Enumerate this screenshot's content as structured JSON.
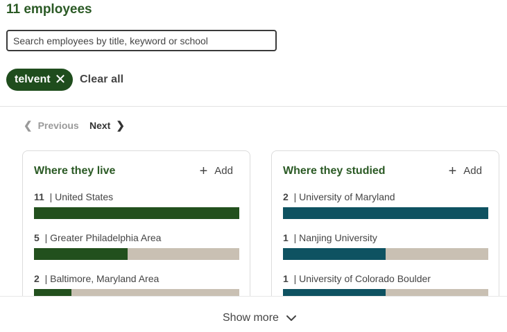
{
  "header": {
    "title": "11 employees"
  },
  "search": {
    "placeholder": "Search employees by title, keyword or school"
  },
  "filters": {
    "active_pill": "telvent",
    "clear_label": "Clear all"
  },
  "pagination": {
    "previous_label": "Previous",
    "next_label": "Next"
  },
  "cards": [
    {
      "title": "Where they live",
      "add_label": "Add",
      "bar_color": "#22501d",
      "rows": [
        {
          "count": "11",
          "label": "| United States",
          "fraction": 1.0
        },
        {
          "count": "5",
          "label": "| Greater Philadelphia Area",
          "fraction": 0.455
        },
        {
          "count": "2",
          "label": "| Baltimore, Maryland Area",
          "fraction": 0.182
        }
      ]
    },
    {
      "title": "Where they studied",
      "add_label": "Add",
      "bar_color": "#0e5261",
      "rows": [
        {
          "count": "2",
          "label": "| University of Maryland",
          "fraction": 1.0
        },
        {
          "count": "1",
          "label": "| Nanjing University",
          "fraction": 0.5
        },
        {
          "count": "1",
          "label": "| University of Colorado Boulder",
          "fraction": 0.5
        }
      ]
    }
  ],
  "bar_track_color": "#c9c0b3",
  "footer": {
    "show_more_label": "Show more"
  }
}
